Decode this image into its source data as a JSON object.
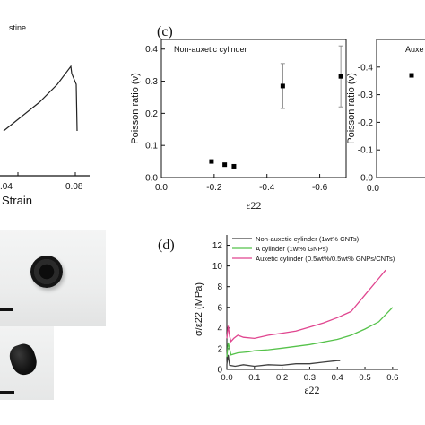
{
  "panel_labels": {
    "c": "(c)",
    "d": "(d)"
  },
  "strain_panel": {
    "legend_fragment": "stine",
    "xlabel": "Strain",
    "tick_labels": [
      ".04",
      "0.08"
    ]
  },
  "chart_data": [
    {
      "type": "line",
      "panel": "a (partial)",
      "xlabel": "Strain",
      "series": [
        {
          "name": "stine",
          "points": [
            [
              0.0,
              0.02
            ],
            [
              0.02,
              0.1
            ],
            [
              0.04,
              0.18
            ],
            [
              0.06,
              0.28
            ],
            [
              0.075,
              0.38
            ],
            [
              0.076,
              0.34
            ],
            [
              0.081,
              0.28
            ],
            [
              0.082,
              0.0
            ]
          ]
        }
      ]
    },
    {
      "type": "scatter",
      "panel": "c",
      "title": "Non-auxetic cylinder",
      "xlabel": "ε22",
      "ylabel": "Poisson ratio (ν)",
      "xlim": [
        0.0,
        -0.7
      ],
      "ylim": [
        0.0,
        0.43
      ],
      "xticks": [
        "0.0",
        "-0.2",
        "-0.4",
        "-0.6"
      ],
      "yticks": [
        "0.0",
        "0.1",
        "0.2",
        "0.3",
        "0.4"
      ],
      "points": [
        {
          "x": -0.19,
          "y": 0.05,
          "err": 0.0
        },
        {
          "x": -0.24,
          "y": 0.04,
          "err": 0.0
        },
        {
          "x": -0.275,
          "y": 0.035,
          "err": 0.0
        },
        {
          "x": -0.46,
          "y": 0.285,
          "err": 0.07
        },
        {
          "x": -0.68,
          "y": 0.315,
          "err": 0.095
        }
      ]
    },
    {
      "type": "scatter",
      "panel": "c (right, partial)",
      "title": "Auxe",
      "xlabel": "",
      "ylabel": "Poisson ratio (ν)",
      "ylim": [
        0.0,
        -0.5
      ],
      "yticks": [
        "0.0",
        "-0.1",
        "-0.2",
        "-0.3",
        "-0.4"
      ],
      "xticks": [
        "0.0"
      ],
      "points": [
        {
          "x": 0.1,
          "y": -0.37
        }
      ]
    },
    {
      "type": "line",
      "panel": "d",
      "xlabel": "ε22",
      "ylabel": "σ/ε22 (MPa)",
      "xlim": [
        0.0,
        0.62
      ],
      "ylim": [
        0,
        13
      ],
      "xticks": [
        "0.0",
        "0.1",
        "0.2",
        "0.3",
        "0.4",
        "0.5",
        "0.6"
      ],
      "yticks": [
        "0",
        "2",
        "4",
        "6",
        "8",
        "10",
        "12"
      ],
      "series": [
        {
          "name": "Non-auxetic cylinder (1wt% CNTs)",
          "color": "#404040",
          "points": [
            [
              0.0,
              0.5
            ],
            [
              0.005,
              1.4
            ],
            [
              0.01,
              0.4
            ],
            [
              0.03,
              0.3
            ],
            [
              0.06,
              0.45
            ],
            [
              0.1,
              0.3
            ],
            [
              0.15,
              0.45
            ],
            [
              0.2,
              0.4
            ],
            [
              0.25,
              0.55
            ],
            [
              0.3,
              0.55
            ],
            [
              0.35,
              0.7
            ],
            [
              0.4,
              0.85
            ],
            [
              0.41,
              0.85
            ]
          ]
        },
        {
          "name": "A cylinder (1wt% GNPs)",
          "color": "#55c24a",
          "points": [
            [
              0.0,
              1.2
            ],
            [
              0.005,
              2.6
            ],
            [
              0.015,
              1.4
            ],
            [
              0.04,
              1.6
            ],
            [
              0.08,
              1.7
            ],
            [
              0.1,
              1.8
            ],
            [
              0.15,
              1.9
            ],
            [
              0.2,
              2.05
            ],
            [
              0.3,
              2.4
            ],
            [
              0.4,
              2.9
            ],
            [
              0.45,
              3.3
            ],
            [
              0.5,
              3.9
            ],
            [
              0.55,
              4.6
            ],
            [
              0.6,
              6.0
            ]
          ]
        },
        {
          "name": "Auxetic cylinder (0.5wt%/0.5wt% GNPs/CNTs)",
          "color": "#e0458f",
          "points": [
            [
              0.0,
              3.0
            ],
            [
              0.005,
              4.2
            ],
            [
              0.01,
              3.2
            ],
            [
              0.015,
              2.7
            ],
            [
              0.025,
              3.0
            ],
            [
              0.04,
              3.3
            ],
            [
              0.06,
              3.1
            ],
            [
              0.1,
              3.0
            ],
            [
              0.15,
              3.3
            ],
            [
              0.2,
              3.5
            ],
            [
              0.25,
              3.7
            ],
            [
              0.3,
              4.1
            ],
            [
              0.35,
              4.5
            ],
            [
              0.4,
              5.0
            ],
            [
              0.45,
              5.6
            ],
            [
              0.5,
              7.2
            ],
            [
              0.55,
              8.8
            ],
            [
              0.575,
              9.6
            ]
          ]
        }
      ]
    }
  ]
}
